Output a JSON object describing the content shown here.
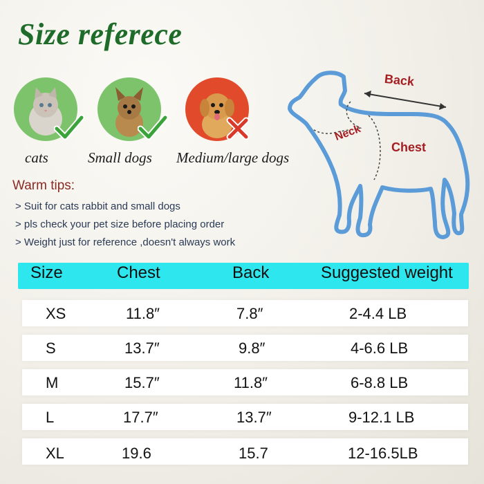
{
  "title": "Size referece",
  "pets": [
    {
      "label": "cats",
      "status": "suitable",
      "icon": "check-icon",
      "bg": "#7cc36b"
    },
    {
      "label": "Small dogs",
      "status": "suitable",
      "icon": "check-icon",
      "bg": "#7cc36b"
    },
    {
      "label": "Medium/large dogs",
      "status": "not-suitable",
      "icon": "cross-icon",
      "bg": "#e24a2c"
    }
  ],
  "tips": {
    "title": "Warm tips:",
    "items": [
      "> Suit for cats rabbit and small dogs",
      "> pls check your pet size before placing order",
      "> Weight just for reference ,doesn't always work"
    ]
  },
  "diagram_labels": {
    "back": "Back",
    "neck": "Neck",
    "chest": "Chest"
  },
  "table": {
    "headers": [
      "Size",
      "Chest",
      "Back",
      "Suggested weight"
    ],
    "rows": [
      [
        "XS",
        "11.8″",
        "7.8″",
        "2-4.4 LB"
      ],
      [
        "S",
        "13.7″",
        "9.8″",
        "4-6.6 LB"
      ],
      [
        "M",
        "15.7″",
        "11.8″",
        "6-8.8 LB"
      ],
      [
        "L",
        "17.7″",
        "13.7″",
        "9-12.1 LB"
      ],
      [
        "XL",
        "19.6",
        "15.7",
        "12-16.5LB"
      ]
    ]
  },
  "colors": {
    "title": "#1f6b2a",
    "header_bar": "#2ee6ee",
    "tips_title": "#8a2a24",
    "diagram_outline": "#5a9bd8",
    "diagram_label": "#a41e22"
  }
}
